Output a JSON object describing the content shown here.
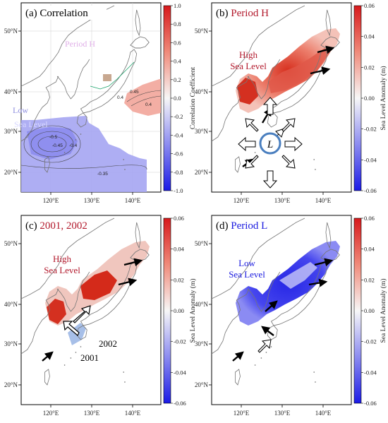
{
  "panels": [
    {
      "id": "a",
      "title_prefix": "(a) ",
      "title_main": "Correlation",
      "title_accent": "",
      "ghost_labels": [
        "Period H",
        "High",
        "Sea Le",
        "Period L",
        "Low",
        "Sea Level"
      ],
      "contour_labels": [
        "-0.5",
        "-0.45",
        "-0.4",
        "-0.35",
        "0.4",
        "0.45",
        "0.4"
      ],
      "colorbar": {
        "label": "Correlation Coefficient",
        "ticks": [
          "1.0",
          "0.8",
          "0.6",
          "0.4",
          "0.2",
          "0.0",
          "-0.2",
          "-0.4",
          "-0.6",
          "-0.8",
          "-1.0"
        ]
      }
    },
    {
      "id": "b",
      "title_prefix": "(b) ",
      "title_main": "",
      "title_accent": "Period H",
      "accent": "red",
      "annotation": [
        "High",
        "Sea Level"
      ],
      "center_label": "L",
      "colorbar": {
        "label": "Sea Level Anomaly (m)",
        "ticks": [
          "0.06",
          "0.04",
          "0.02",
          "0.00",
          "-0.02",
          "-0.04",
          "-0.06"
        ]
      }
    },
    {
      "id": "c",
      "title_prefix": "(c) ",
      "title_main": "",
      "title_accent": "2001, 2002",
      "accent": "red",
      "annotation": [
        "High",
        "Sea Level"
      ],
      "year_labels": [
        "2002",
        "2001"
      ],
      "colorbar": {
        "label": "Sea Level Anomaly (m)",
        "ticks": [
          "0.06",
          "0.04",
          "0.02",
          "0.00",
          "-0.02",
          "-0.04",
          "-0.06"
        ]
      }
    },
    {
      "id": "d",
      "title_prefix": "(d) ",
      "title_main": "",
      "title_accent": "Period L",
      "accent": "blue",
      "annotation": [
        "Low",
        "Sea Level"
      ],
      "colorbar": {
        "label": "Sea Level Anomaly (m)",
        "ticks": [
          "0.06",
          "0.04",
          "0.02",
          "0.00",
          "-0.02",
          "-0.04",
          "-0.06"
        ]
      }
    }
  ],
  "axes": {
    "lon_ticks": [
      "120°E",
      "130°E",
      "140°E"
    ],
    "lat_ticks": [
      "50°N",
      "40°N",
      "30°N",
      "20°N"
    ]
  },
  "colors": {
    "red": "#c0151c",
    "blue": "#1f1fe0",
    "neutral": "#f5f5f5",
    "coast": "#7a7a7a"
  }
}
